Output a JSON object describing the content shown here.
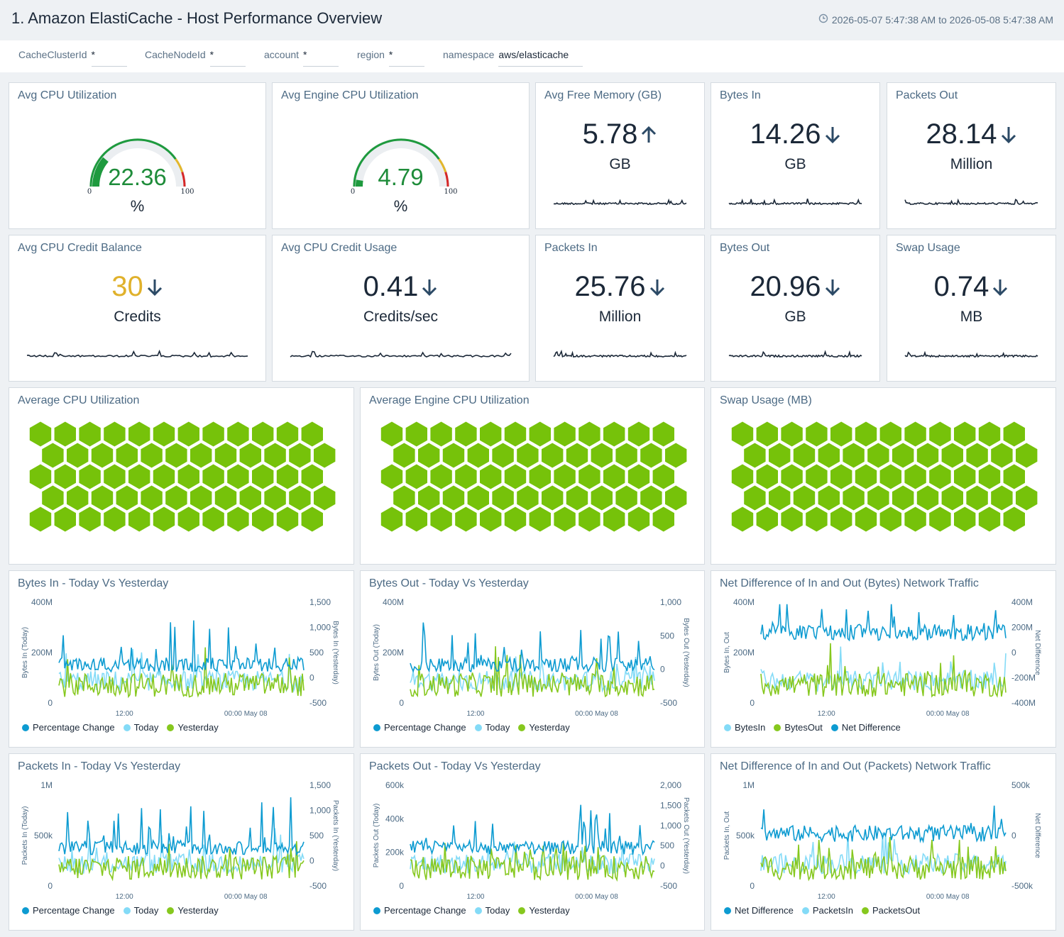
{
  "header": {
    "title": "1. Amazon ElastiCache - Host Performance Overview",
    "time_range": "2026-05-07 5:47:38 AM to 2026-05-08 5:47:38 AM"
  },
  "filters": [
    {
      "label": "CacheClusterId",
      "value": "*"
    },
    {
      "label": "CacheNodeId",
      "value": "*"
    },
    {
      "label": "account",
      "value": "*"
    },
    {
      "label": "region",
      "value": "*"
    },
    {
      "label": "namespace",
      "value": "aws/elasticache"
    }
  ],
  "gauges": [
    {
      "title": "Avg CPU Utilization",
      "value": "22.36",
      "unit": "%",
      "min": "0",
      "max": "100",
      "fraction": 0.2236
    },
    {
      "title": "Avg Engine CPU Utilization",
      "value": "4.79",
      "unit": "%",
      "min": "0",
      "max": "100",
      "fraction": 0.0479
    }
  ],
  "stats": [
    {
      "title": "Avg Free Memory (GB)",
      "value": "5.78",
      "unit": "GB",
      "trend": "up",
      "value_color": "#1b2838"
    },
    {
      "title": "Bytes In",
      "value": "14.26",
      "unit": "GB",
      "trend": "down",
      "value_color": "#1b2838"
    },
    {
      "title": "Packets Out",
      "value": "28.14",
      "unit": "Million",
      "trend": "down",
      "value_color": "#1b2838"
    },
    {
      "title": "Avg CPU Credit Balance",
      "value": "30",
      "unit": "Credits",
      "trend": "down",
      "value_color": "#e0b12b"
    },
    {
      "title": "Avg CPU Credit Usage",
      "value": "0.41",
      "unit": "Credits/sec",
      "trend": "down",
      "value_color": "#1b2838"
    },
    {
      "title": "Packets In",
      "value": "25.76",
      "unit": "Million",
      "trend": "down",
      "value_color": "#1b2838"
    },
    {
      "title": "Bytes Out",
      "value": "20.96",
      "unit": "GB",
      "trend": "down",
      "value_color": "#1b2838"
    },
    {
      "title": "Swap Usage",
      "value": "0.74",
      "unit": "MB",
      "trend": "down",
      "value_color": "#1b2838"
    }
  ],
  "honeycombs": [
    {
      "title": "Average CPU Utilization",
      "color": "#76c20a"
    },
    {
      "title": "Average Engine CPU Utilization",
      "color": "#76c20a"
    },
    {
      "title": "Swap Usage (MB)",
      "color": "#76c20a"
    }
  ],
  "colors": {
    "percentage_change": "#0d9bd1",
    "today": "#84dbf7",
    "yesterday": "#86c81e"
  },
  "chart_data": [
    {
      "type": "line",
      "title": "Bytes In - Today Vs Yesterday",
      "ylabel": "Bytes In (Today)",
      "y2label": "Bytes In (Yesterday)",
      "yticks": [
        "400M",
        "200M",
        "0"
      ],
      "y2ticks": [
        "1,500",
        "1,000",
        "500",
        "0",
        "-500"
      ],
      "xticks": [
        "12:00",
        "00:00 May 08"
      ],
      "series": [
        {
          "name": "Percentage Change",
          "color": "#0d9bd1"
        },
        {
          "name": "Today",
          "color": "#84dbf7"
        },
        {
          "name": "Yesterday",
          "color": "#86c81e"
        }
      ]
    },
    {
      "type": "line",
      "title": "Bytes Out - Today Vs Yesterday",
      "ylabel": "Bytes Out (Today)",
      "y2label": "Bytes Out (Yesterday)",
      "yticks": [
        "400M",
        "200M",
        "0"
      ],
      "y2ticks": [
        "1,000",
        "500",
        "0",
        "-500"
      ],
      "xticks": [
        "12:00",
        "00:00 May 08"
      ],
      "series": [
        {
          "name": "Percentage Change",
          "color": "#0d9bd1"
        },
        {
          "name": "Today",
          "color": "#84dbf7"
        },
        {
          "name": "Yesterday",
          "color": "#86c81e"
        }
      ]
    },
    {
      "type": "line",
      "title": "Net Difference of In and Out (Bytes) Network Traffic",
      "ylabel": "Bytes In, Out",
      "y2label": "Net Difference",
      "yticks": [
        "400M",
        "200M",
        "0"
      ],
      "y2ticks": [
        "400M",
        "200M",
        "0",
        "-200M",
        "-400M"
      ],
      "xticks": [
        "12:00",
        "00:00 May 08"
      ],
      "series": [
        {
          "name": "BytesIn",
          "color": "#84dbf7"
        },
        {
          "name": "BytesOut",
          "color": "#86c81e"
        },
        {
          "name": "Net Difference",
          "color": "#0d9bd1"
        }
      ]
    },
    {
      "type": "line",
      "title": "Packets In - Today Vs Yesterday",
      "ylabel": "Packets In (Today)",
      "y2label": "Packets In (Yesterday)",
      "yticks": [
        "1M",
        "500k",
        "0"
      ],
      "y2ticks": [
        "1,500",
        "1,000",
        "500",
        "0",
        "-500"
      ],
      "xticks": [
        "12:00",
        "00:00 May 08"
      ],
      "series": [
        {
          "name": "Percentage Change",
          "color": "#0d9bd1"
        },
        {
          "name": "Today",
          "color": "#84dbf7"
        },
        {
          "name": "Yesterday",
          "color": "#86c81e"
        }
      ]
    },
    {
      "type": "line",
      "title": "Packets Out - Today Vs Yesterday",
      "ylabel": "Packets Out (Today)",
      "y2label": "Packets Out (Yesterday)",
      "yticks": [
        "600k",
        "400k",
        "200k",
        "0"
      ],
      "y2ticks": [
        "2,000",
        "1,500",
        "1,000",
        "500",
        "0",
        "-500"
      ],
      "xticks": [
        "12:00",
        "00:00 May 08"
      ],
      "series": [
        {
          "name": "Percentage Change",
          "color": "#0d9bd1"
        },
        {
          "name": "Today",
          "color": "#84dbf7"
        },
        {
          "name": "Yesterday",
          "color": "#86c81e"
        }
      ]
    },
    {
      "type": "line",
      "title": "Net Difference of In and Out (Packets) Network Traffic",
      "ylabel": "Packets In, Out",
      "y2label": "Net Difference",
      "yticks": [
        "1M",
        "500k",
        "0"
      ],
      "y2ticks": [
        "500k",
        "0",
        "-500k"
      ],
      "xticks": [
        "12:00",
        "00:00 May 08"
      ],
      "series": [
        {
          "name": "Net Difference",
          "color": "#0d9bd1"
        },
        {
          "name": "PacketsIn",
          "color": "#84dbf7"
        },
        {
          "name": "PacketsOut",
          "color": "#86c81e"
        }
      ]
    }
  ]
}
